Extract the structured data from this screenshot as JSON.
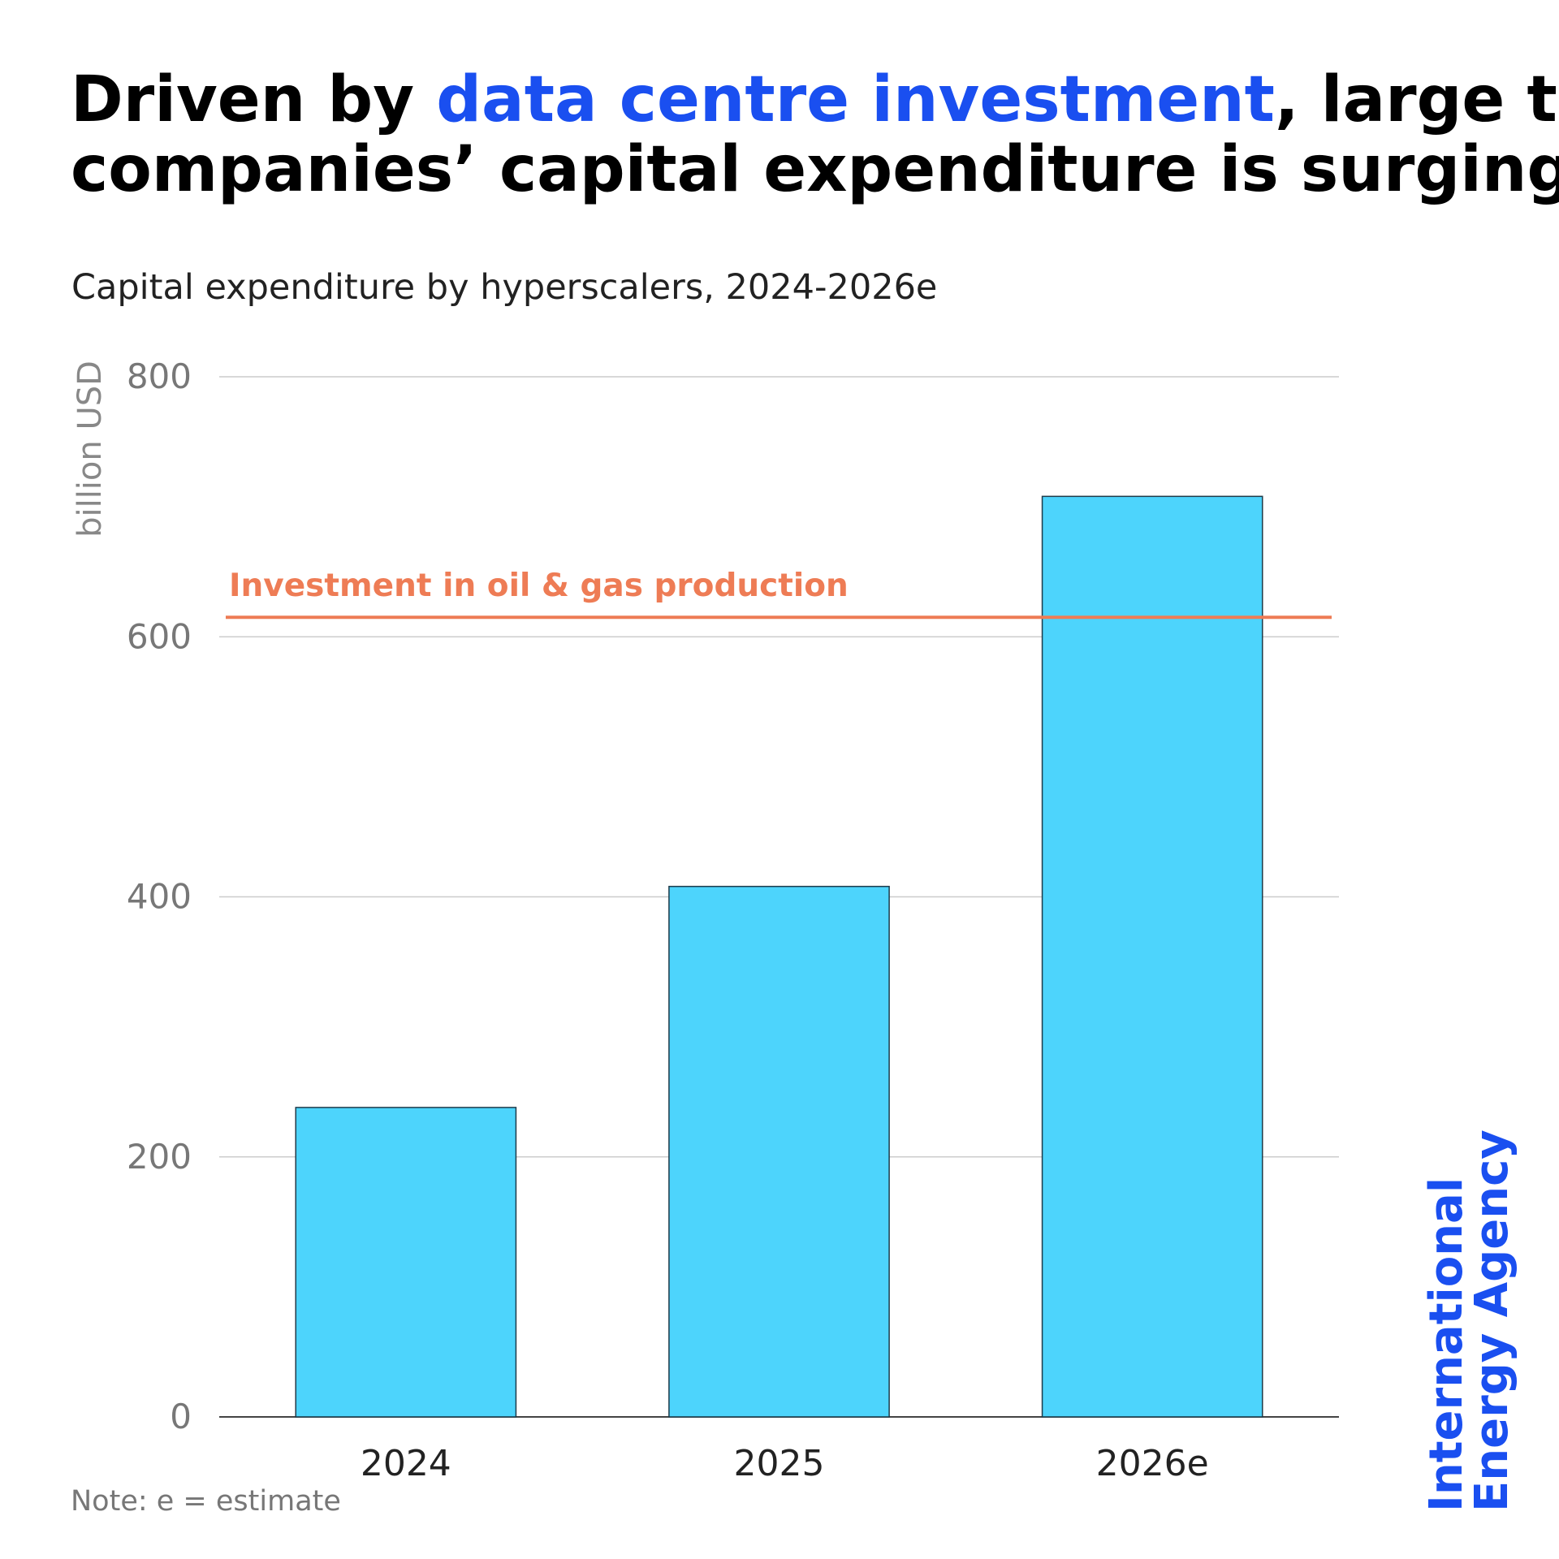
{
  "chart_data": {
    "type": "bar",
    "title": [
      [
        {
          "text": "Driven by "
        },
        {
          "text": "data centre investment",
          "color": "#1a4ff0"
        },
        {
          "text": ", large tech"
        }
      ],
      [
        {
          "text": "companies’ capital expenditure is surging"
        }
      ]
    ],
    "subtitle": "Capital expenditure by hyperscalers, 2024-2026e",
    "y_label": "billion USD",
    "categories": [
      "2024",
      "2025",
      "2026e"
    ],
    "values": [
      238,
      408,
      708
    ],
    "color": "#4dd4fc",
    "ylim": [
      0,
      800
    ],
    "yticks": [
      0,
      200,
      400,
      600,
      800
    ],
    "grid": true,
    "reference_line": {
      "label": "Investment in oil & gas production",
      "value": 615,
      "color": "#ee7c55"
    },
    "note": "Note: e = estimate"
  },
  "branding": {
    "lines": [
      "International",
      "Energy Agency"
    ],
    "color": "#1a4ff0"
  }
}
